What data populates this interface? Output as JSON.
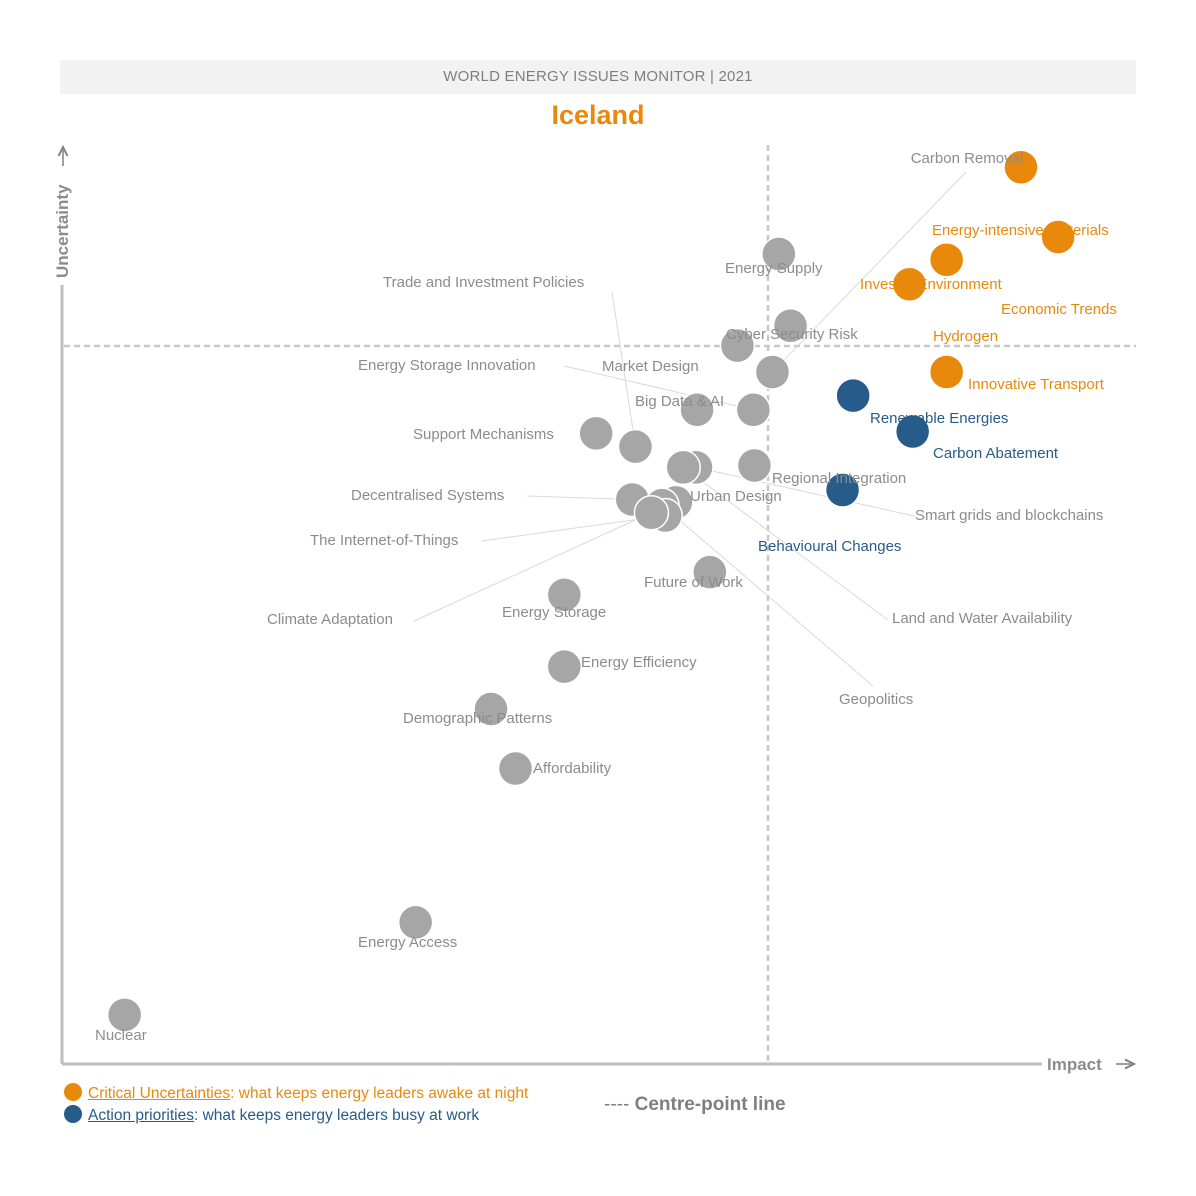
{
  "header": {
    "banner": "WORLD ENERGY ISSUES MONITOR | 2021",
    "country": "Iceland"
  },
  "colors": {
    "critical": "#e8890c",
    "action": "#275b8a",
    "other": "#a6a6a6",
    "axis": "#bfbfbf",
    "label_grey": "#8c8c8c"
  },
  "legend": {
    "critical_lead": "Critical Uncertainties",
    "critical_rest": ": what keeps energy leaders awake at night",
    "action_lead": "Action priorities",
    "action_rest": ": what keeps energy leaders busy at work",
    "centre_dashes": "----",
    "centre_label": " Centre-point line"
  },
  "chart_data": {
    "type": "scatter",
    "title": "Iceland",
    "xlabel": "Impact",
    "ylabel": "Uncertainty",
    "xlim": [
      0,
      100
    ],
    "ylim": [
      0,
      100
    ],
    "centre": {
      "x": 66.3,
      "y": 78.9
    },
    "points": [
      {
        "label": "Carbon Removal",
        "category": "other",
        "x": 66.9,
        "y": 73.3
      },
      {
        "label": "Energy-intensive materials",
        "category": "critical",
        "x": 90.3,
        "y": 95.0
      },
      {
        "label": "Economic Trends",
        "category": "critical",
        "x": 93.8,
        "y": 87.6
      },
      {
        "label": "Investor Environment",
        "category": "critical",
        "x": 83.3,
        "y": 85.2
      },
      {
        "label": "Hydrogen",
        "category": "critical",
        "x": 79.8,
        "y": 82.6
      },
      {
        "label": "Innovative Transport",
        "category": "critical",
        "x": 83.3,
        "y": 73.3
      },
      {
        "label": "Renewable Energies",
        "category": "action",
        "x": 74.5,
        "y": 70.8
      },
      {
        "label": "Carbon Abatement",
        "category": "action",
        "x": 80.1,
        "y": 67.0
      },
      {
        "label": "Behavioural Changes",
        "category": "action",
        "x": 73.5,
        "y": 60.8
      },
      {
        "label": "Energy Supply",
        "category": "other",
        "x": 67.5,
        "y": 85.8
      },
      {
        "label": "Cyber Security Risk",
        "category": "other",
        "x": 68.6,
        "y": 78.2
      },
      {
        "label": "Market Design",
        "category": "other",
        "x": 63.6,
        "y": 76.1
      },
      {
        "label": "Energy Storage Innovation",
        "category": "other",
        "x": 65.1,
        "y": 69.3
      },
      {
        "label": "Big Data & AI",
        "category": "other",
        "x": 59.8,
        "y": 69.3
      },
      {
        "label": "Support Mechanisms",
        "category": "other",
        "x": 50.3,
        "y": 66.8
      },
      {
        "label": "Trade and Investment Policies",
        "category": "other",
        "x": 54.0,
        "y": 65.4
      },
      {
        "label": "Regional Integration",
        "category": "other",
        "x": 65.2,
        "y": 63.4
      },
      {
        "label": "Smart grids and blockchains",
        "category": "other",
        "x": 59.7,
        "y": 63.2
      },
      {
        "label": "Land and Water Availability",
        "category": "other",
        "x": 58.5,
        "y": 63.2
      },
      {
        "label": "Decentralised Systems",
        "category": "other",
        "x": 53.7,
        "y": 59.8
      },
      {
        "label": "Urban Design",
        "category": "other",
        "x": 57.8,
        "y": 59.5
      },
      {
        "label": "Geopolitics",
        "category": "other",
        "x": 56.5,
        "y": 59.2
      },
      {
        "label": "The Internet-of-Things",
        "category": "other",
        "x": 56.8,
        "y": 58.1
      },
      {
        "label": "Climate Adaptation",
        "category": "other",
        "x": 55.5,
        "y": 58.4
      },
      {
        "label": "Future of Work",
        "category": "other",
        "x": 61.0,
        "y": 52.1
      },
      {
        "label": "Energy Storage",
        "category": "other",
        "x": 47.3,
        "y": 49.7
      },
      {
        "label": "Energy Efficiency",
        "category": "other",
        "x": 47.3,
        "y": 42.1
      },
      {
        "label": "Demographic Patterns",
        "category": "other",
        "x": 40.4,
        "y": 37.6
      },
      {
        "label": "Affordability",
        "category": "other",
        "x": 42.7,
        "y": 31.3
      },
      {
        "label": "Energy Access",
        "category": "other",
        "x": 33.3,
        "y": 15.0
      },
      {
        "label": "Nuclear",
        "category": "other",
        "x": 5.9,
        "y": 5.2
      }
    ]
  }
}
